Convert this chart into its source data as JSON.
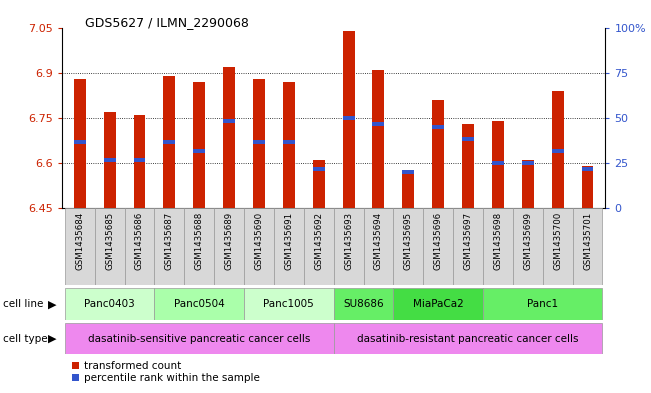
{
  "title": "GDS5627 / ILMN_2290068",
  "samples": [
    "GSM1435684",
    "GSM1435685",
    "GSM1435686",
    "GSM1435687",
    "GSM1435688",
    "GSM1435689",
    "GSM1435690",
    "GSM1435691",
    "GSM1435692",
    "GSM1435693",
    "GSM1435694",
    "GSM1435695",
    "GSM1435696",
    "GSM1435697",
    "GSM1435698",
    "GSM1435699",
    "GSM1435700",
    "GSM1435701"
  ],
  "bar_values": [
    6.88,
    6.77,
    6.76,
    6.89,
    6.87,
    6.92,
    6.88,
    6.87,
    6.61,
    7.04,
    6.91,
    6.57,
    6.81,
    6.73,
    6.74,
    6.61,
    6.84,
    6.59
  ],
  "percentile_values": [
    6.67,
    6.61,
    6.61,
    6.67,
    6.64,
    6.74,
    6.67,
    6.67,
    6.58,
    6.75,
    6.73,
    6.57,
    6.72,
    6.68,
    6.6,
    6.6,
    6.64,
    6.58
  ],
  "ymin": 6.45,
  "ymax": 7.05,
  "yticks": [
    6.45,
    6.6,
    6.75,
    6.9,
    7.05
  ],
  "ytick_labels": [
    "6.45",
    "6.6",
    "6.75",
    "6.9",
    "7.05"
  ],
  "right_yticks": [
    0.0,
    0.25,
    0.5,
    0.75,
    1.0
  ],
  "right_ytick_labels": [
    "0",
    "25",
    "50",
    "75",
    "100%"
  ],
  "bar_color": "#cc2200",
  "percentile_color": "#3355cc",
  "grid_color": "#000000",
  "cell_lines": [
    {
      "name": "Panc0403",
      "start": 0,
      "end": 2,
      "color": "#ccffcc"
    },
    {
      "name": "Panc0504",
      "start": 3,
      "end": 5,
      "color": "#aaffaa"
    },
    {
      "name": "Panc1005",
      "start": 6,
      "end": 8,
      "color": "#ccffcc"
    },
    {
      "name": "SU8686",
      "start": 9,
      "end": 10,
      "color": "#66ee66"
    },
    {
      "name": "MiaPaCa2",
      "start": 11,
      "end": 13,
      "color": "#44dd44"
    },
    {
      "name": "Panc1",
      "start": 14,
      "end": 17,
      "color": "#66ee66"
    }
  ],
  "cell_types": [
    {
      "name": "dasatinib-sensitive pancreatic cancer cells",
      "start": 0,
      "end": 8,
      "color": "#ee88ee"
    },
    {
      "name": "dasatinib-resistant pancreatic cancer cells",
      "start": 9,
      "end": 17,
      "color": "#ee88ee"
    }
  ],
  "bg_color": "#ffffff",
  "plot_bg_color": "#ffffff",
  "tick_label_color_left": "#cc2200",
  "tick_label_color_right": "#3355cc",
  "xtick_bg_color": "#d8d8d8",
  "bar_width": 0.4
}
